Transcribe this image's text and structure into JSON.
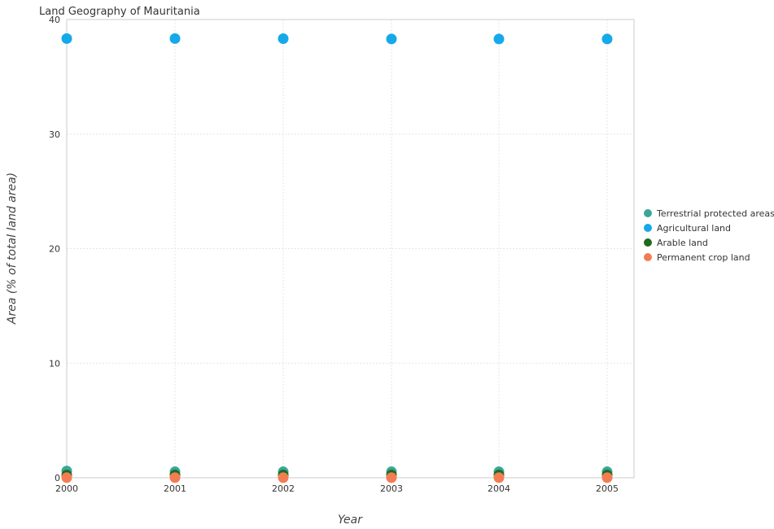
{
  "chart_data": {
    "type": "scatter",
    "title": "Land Geography of Mauritania",
    "xlabel": "Year",
    "ylabel": "Area (% of total land area)",
    "x": [
      "2000",
      "2001",
      "2002",
      "2003",
      "2004",
      "2005"
    ],
    "ylim": [
      0,
      40
    ],
    "yticks": [
      0,
      10,
      20,
      30,
      40
    ],
    "grid": true,
    "legend_position": "right",
    "series": [
      {
        "name": "Terrestrial protected areas",
        "color": "#3aa69a",
        "values": [
          0.59,
          0.52,
          0.52,
          0.52,
          0.52,
          0.52
        ]
      },
      {
        "name": "Agricultural land",
        "color": "#16a9ea",
        "values": [
          38.34,
          38.34,
          38.33,
          38.3,
          38.3,
          38.3
        ]
      },
      {
        "name": "Arable land",
        "color": "#1e6b1e",
        "values": [
          0.23,
          0.24,
          0.24,
          0.24,
          0.24,
          0.24
        ]
      },
      {
        "name": "Permanent crop land",
        "color": "#f47c52",
        "values": [
          0.01,
          0.01,
          0.01,
          0.01,
          0.01,
          0.01
        ]
      }
    ]
  }
}
